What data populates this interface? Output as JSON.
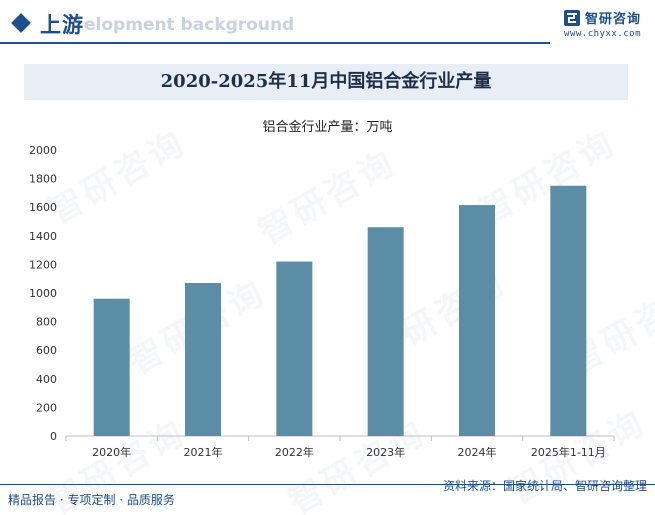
{
  "header": {
    "section_title": "上游",
    "section_subtitle": "elopment background",
    "brand_name": "智研咨询",
    "brand_url": "www.chyxx.com"
  },
  "watermark_text": "智研咨询",
  "footer": {
    "left": "精品报告 · 专项定制 · 品质服务",
    "right": "资料来源：国家统计局、智研咨询整理"
  },
  "colors": {
    "bar": "#5b8ea6",
    "brand": "#1f4e8c",
    "title_bg": "#e8eef6"
  },
  "chart_data": {
    "type": "bar",
    "title": "2020-2025年11月中国铝合金行业产量",
    "unit_label": "铝合金行业产量：万吨",
    "categories": [
      "2020年",
      "2021年",
      "2022年",
      "2023年",
      "2024年",
      "2025年1-11月"
    ],
    "values": [
      960,
      1070,
      1220,
      1460,
      1615,
      1750
    ],
    "ylim": [
      0,
      2000
    ],
    "yticks": [
      0,
      200,
      400,
      600,
      800,
      1000,
      1200,
      1400,
      1600,
      1800,
      2000
    ],
    "xlabel": "",
    "ylabel": "",
    "grid": false,
    "legend": "none"
  }
}
